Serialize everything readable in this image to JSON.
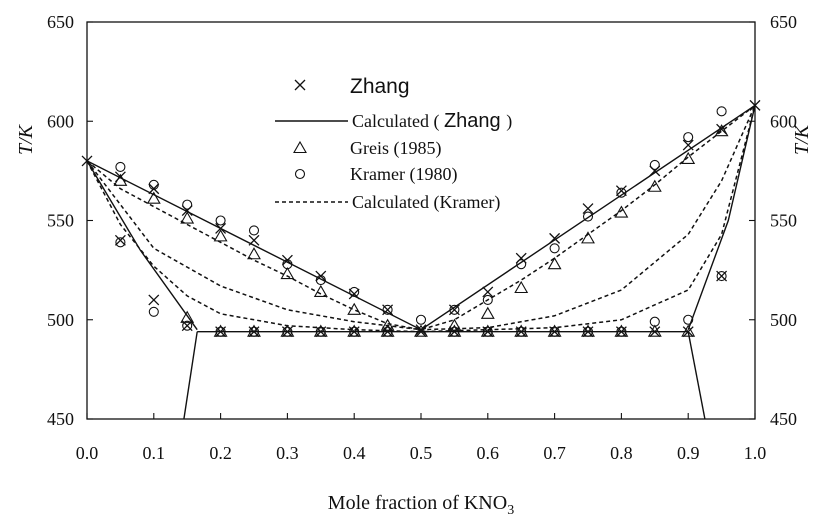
{
  "chart_data": {
    "type": "scatter",
    "xlabel": "Mole fraction of KNO",
    "xlabel_sub": "3",
    "ylabel": "T/K",
    "xlim": [
      0.0,
      1.0
    ],
    "ylim": [
      450,
      650
    ],
    "xticks": [
      "0.0",
      "0.1",
      "0.2",
      "0.3",
      "0.4",
      "0.5",
      "0.6",
      "0.7",
      "0.8",
      "0.9",
      "1.0"
    ],
    "yticks": [
      "450",
      "500",
      "550",
      "600",
      "650"
    ],
    "legend_placement": "top-center",
    "legend": [
      {
        "label": "Zhang",
        "marker": "x"
      },
      {
        "label": "Calculated (",
        "label_tail": ")",
        "label_mid": "Zhang",
        "style": "solid-line"
      },
      {
        "label": "Greis (1985)",
        "marker": "triangle"
      },
      {
        "label": "Kramer (1980)",
        "marker": "circle"
      },
      {
        "label": "Calculated (Kramer)",
        "style": "dashed-line"
      }
    ],
    "series": [
      {
        "name": "Zhang",
        "marker": "x",
        "points": [
          [
            0.0,
            580
          ],
          [
            0.05,
            572
          ],
          [
            0.1,
            566
          ],
          [
            0.15,
            555
          ],
          [
            0.2,
            546
          ],
          [
            0.25,
            540
          ],
          [
            0.3,
            530
          ],
          [
            0.35,
            522
          ],
          [
            0.4,
            513
          ],
          [
            0.45,
            505
          ],
          [
            0.5,
            495
          ],
          [
            0.55,
            505
          ],
          [
            0.6,
            514
          ],
          [
            0.65,
            531
          ],
          [
            0.7,
            541
          ],
          [
            0.75,
            556
          ],
          [
            0.8,
            565
          ],
          [
            0.85,
            575
          ],
          [
            0.9,
            588
          ],
          [
            0.95,
            596
          ],
          [
            1.0,
            608
          ],
          [
            0.05,
            540
          ],
          [
            0.1,
            510
          ],
          [
            0.15,
            497
          ],
          [
            0.2,
            494
          ],
          [
            0.25,
            494
          ],
          [
            0.3,
            494
          ],
          [
            0.35,
            494
          ],
          [
            0.4,
            494
          ],
          [
            0.45,
            494
          ],
          [
            0.5,
            494
          ],
          [
            0.55,
            494
          ],
          [
            0.6,
            494
          ],
          [
            0.65,
            494
          ],
          [
            0.7,
            494
          ],
          [
            0.75,
            494
          ],
          [
            0.8,
            494
          ],
          [
            0.85,
            494
          ],
          [
            0.9,
            494
          ],
          [
            0.95,
            522
          ]
        ]
      },
      {
        "name": "Greis (1985)",
        "marker": "triangle",
        "points": [
          [
            0.05,
            570
          ],
          [
            0.1,
            561
          ],
          [
            0.15,
            551
          ],
          [
            0.2,
            542
          ],
          [
            0.25,
            533
          ],
          [
            0.3,
            523
          ],
          [
            0.35,
            514
          ],
          [
            0.4,
            505
          ],
          [
            0.45,
            497
          ],
          [
            0.5,
            494
          ],
          [
            0.55,
            497
          ],
          [
            0.6,
            503
          ],
          [
            0.65,
            516
          ],
          [
            0.7,
            528
          ],
          [
            0.75,
            541
          ],
          [
            0.8,
            554
          ],
          [
            0.85,
            567
          ],
          [
            0.9,
            581
          ],
          [
            0.95,
            595
          ],
          [
            0.15,
            501
          ],
          [
            0.2,
            494
          ],
          [
            0.25,
            494
          ],
          [
            0.3,
            494
          ],
          [
            0.35,
            494
          ],
          [
            0.4,
            494
          ],
          [
            0.45,
            494
          ],
          [
            0.55,
            494
          ],
          [
            0.6,
            494
          ],
          [
            0.65,
            494
          ],
          [
            0.7,
            494
          ],
          [
            0.75,
            494
          ],
          [
            0.8,
            494
          ],
          [
            0.85,
            494
          ],
          [
            0.9,
            494
          ]
        ]
      },
      {
        "name": "Kramer (1980)",
        "marker": "circle",
        "points": [
          [
            0.05,
            577
          ],
          [
            0.1,
            568
          ],
          [
            0.15,
            558
          ],
          [
            0.2,
            550
          ],
          [
            0.25,
            545
          ],
          [
            0.3,
            528
          ],
          [
            0.35,
            520
          ],
          [
            0.4,
            514
          ],
          [
            0.45,
            505
          ],
          [
            0.5,
            500
          ],
          [
            0.55,
            505
          ],
          [
            0.6,
            510
          ],
          [
            0.65,
            528
          ],
          [
            0.7,
            536
          ],
          [
            0.75,
            552
          ],
          [
            0.8,
            564
          ],
          [
            0.85,
            578
          ],
          [
            0.9,
            592
          ],
          [
            0.95,
            605
          ],
          [
            0.05,
            539
          ],
          [
            0.1,
            504
          ],
          [
            0.15,
            497
          ],
          [
            0.2,
            494
          ],
          [
            0.25,
            494
          ],
          [
            0.3,
            494
          ],
          [
            0.35,
            494
          ],
          [
            0.4,
            494
          ],
          [
            0.45,
            494
          ],
          [
            0.55,
            494
          ],
          [
            0.6,
            494
          ],
          [
            0.65,
            494
          ],
          [
            0.7,
            494
          ],
          [
            0.75,
            494
          ],
          [
            0.8,
            494
          ],
          [
            0.85,
            499
          ],
          [
            0.9,
            500
          ],
          [
            0.95,
            522
          ]
        ]
      }
    ],
    "lines": [
      {
        "name": "Calculated (Zhang)",
        "style": "solid",
        "points": [
          [
            0.0,
            580
          ],
          [
            0.5,
            495
          ],
          [
            1.0,
            608
          ]
        ]
      },
      {
        "name": "Calculated (Zhang)",
        "style": "solid",
        "points": [
          [
            0.0,
            580
          ],
          [
            0.08,
            535
          ],
          [
            0.165,
            495
          ]
        ]
      },
      {
        "name": "Calculated (Zhang)",
        "style": "solid",
        "points": [
          [
            0.9,
            495
          ],
          [
            0.96,
            550
          ],
          [
            1.0,
            608
          ]
        ]
      },
      {
        "name": "Calculated (Zhang)",
        "style": "solid",
        "points": [
          [
            0.165,
            494
          ],
          [
            0.9,
            494
          ]
        ]
      },
      {
        "name": "Calculated (Zhang)",
        "style": "solid",
        "points": [
          [
            0.165,
            494
          ],
          [
            0.145,
            450
          ]
        ]
      },
      {
        "name": "Calculated (Zhang)",
        "style": "solid",
        "points": [
          [
            0.9,
            494
          ],
          [
            0.925,
            450
          ]
        ]
      },
      {
        "name": "Calculated (Kramer)",
        "style": "dashed",
        "points": [
          [
            0.0,
            580
          ],
          [
            0.05,
            566
          ],
          [
            0.1,
            557
          ],
          [
            0.15,
            548
          ],
          [
            0.2,
            539
          ],
          [
            0.25,
            530
          ],
          [
            0.3,
            522
          ],
          [
            0.35,
            513
          ],
          [
            0.4,
            505
          ],
          [
            0.45,
            498
          ],
          [
            0.5,
            495
          ],
          [
            0.55,
            500
          ],
          [
            0.6,
            510
          ],
          [
            0.65,
            520
          ],
          [
            0.7,
            531
          ],
          [
            0.75,
            543
          ],
          [
            0.8,
            555
          ],
          [
            0.85,
            568
          ],
          [
            0.9,
            582
          ],
          [
            0.95,
            595
          ],
          [
            1.0,
            608
          ]
        ]
      },
      {
        "name": "Calculated (Kramer)",
        "style": "dashed",
        "points": [
          [
            0.0,
            580
          ],
          [
            0.1,
            536
          ],
          [
            0.2,
            517
          ],
          [
            0.3,
            505
          ],
          [
            0.4,
            499
          ],
          [
            0.5,
            495
          ],
          [
            0.6,
            496
          ],
          [
            0.7,
            502
          ],
          [
            0.8,
            515
          ],
          [
            0.9,
            543
          ],
          [
            0.95,
            570
          ],
          [
            1.0,
            608
          ]
        ]
      },
      {
        "name": "Calculated (Kramer)",
        "style": "dashed",
        "points": [
          [
            0.0,
            580
          ],
          [
            0.05,
            548
          ],
          [
            0.1,
            527
          ],
          [
            0.15,
            512
          ],
          [
            0.2,
            503
          ],
          [
            0.3,
            497
          ],
          [
            0.4,
            495
          ],
          [
            0.5,
            494
          ],
          [
            0.6,
            495
          ],
          [
            0.7,
            496
          ],
          [
            0.8,
            500
          ],
          [
            0.9,
            515
          ],
          [
            0.95,
            543
          ],
          [
            1.0,
            608
          ]
        ]
      }
    ]
  }
}
